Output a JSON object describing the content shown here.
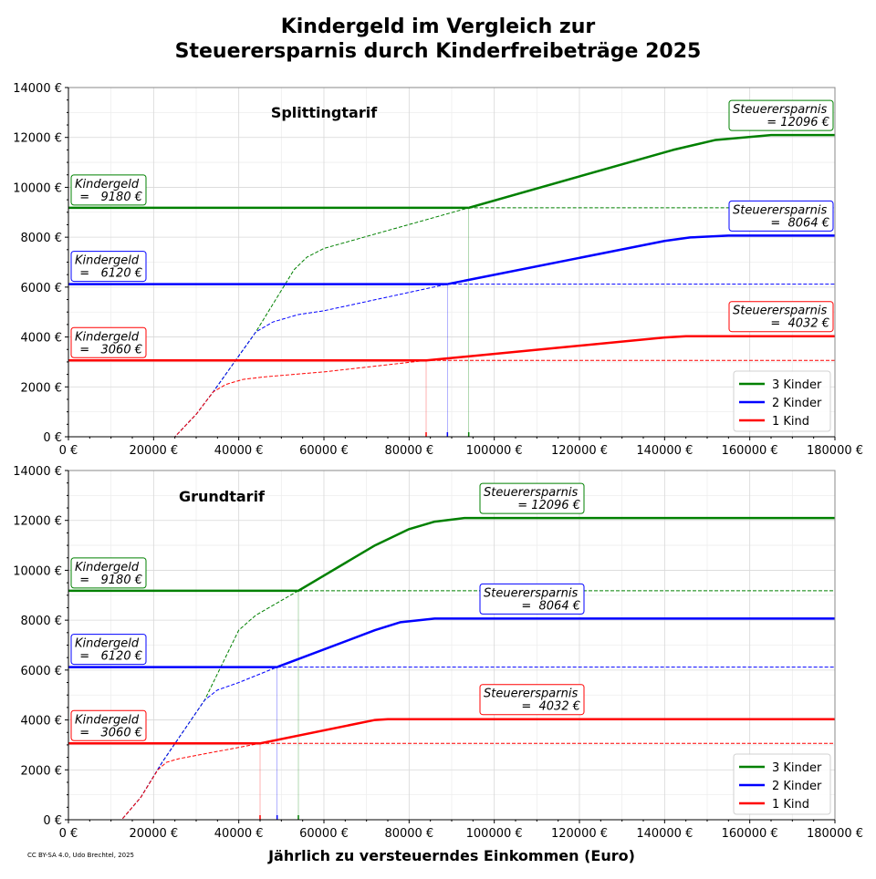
{
  "chart_data": [
    {
      "type": "line",
      "title": "Kindergeld im Vergleich zur",
      "title_line2": "Steuerersparnis durch Kinderfreibeträge 2025",
      "subtitle": "Splittingtarif",
      "xlabel": "",
      "ylabel": "",
      "xlim": [
        0,
        180000
      ],
      "ylim": [
        0,
        14000
      ],
      "grid": true,
      "legend_placement": "lower-right",
      "x_ticks": [
        0,
        20000,
        40000,
        60000,
        80000,
        100000,
        120000,
        140000,
        160000,
        180000
      ],
      "x_tick_labels": [
        "0 €",
        "20000 €",
        "40000 €",
        "60000 €",
        "80000 €",
        "100000 €",
        "120000 €",
        "140000 €",
        "160000 €",
        "180000 €"
      ],
      "y_ticks": [
        0,
        2000,
        4000,
        6000,
        8000,
        10000,
        12000,
        14000
      ],
      "y_tick_labels": [
        "0 €",
        "2000 €",
        "4000 €",
        "6000 €",
        "8000 €",
        "10000 €",
        "12000 €",
        "14000 €"
      ],
      "series": [
        {
          "name": "3 Kinder",
          "color": "#008000",
          "kindergeld": 9180,
          "crossing_x": 94000,
          "kg_label": [
            "Kindergeld",
            "=   9180 €"
          ],
          "st_label": [
            "Steuerersparnis",
            "= 12096 €"
          ],
          "x": [
            0,
            25000,
            30000,
            34000,
            44000,
            53000,
            56000,
            60000,
            94000,
            142000,
            152000,
            165000,
            180000
          ],
          "y": [
            0,
            0,
            900,
            1800,
            4200,
            6700,
            7200,
            7550,
            9180,
            11500,
            11900,
            12096,
            12096
          ]
        },
        {
          "name": "2 Kinder",
          "color": "#0000ff",
          "kindergeld": 6120,
          "crossing_x": 89000,
          "kg_label": [
            "Kindergeld",
            "=   6120 €"
          ],
          "st_label": [
            "Steuerersparnis",
            "=  8064 €"
          ],
          "x": [
            0,
            25000,
            30000,
            34000,
            44000,
            48000,
            54000,
            60000,
            89000,
            140000,
            146000,
            155000,
            180000
          ],
          "y": [
            0,
            0,
            900,
            1800,
            4200,
            4600,
            4900,
            5050,
            6120,
            7850,
            7990,
            8064,
            8064
          ]
        },
        {
          "name": "1 Kind",
          "color": "#ff0000",
          "kindergeld": 3060,
          "crossing_x": 84000,
          "kg_label": [
            "Kindergeld",
            "=   3060 €"
          ],
          "st_label": [
            "Steuerersparnis",
            "=  4032 €"
          ],
          "x": [
            0,
            25000,
            30000,
            34000,
            37000,
            41000,
            46000,
            60000,
            84000,
            140000,
            145000,
            180000
          ],
          "y": [
            0,
            0,
            900,
            1800,
            2100,
            2300,
            2400,
            2600,
            3060,
            3980,
            4032,
            4032
          ]
        }
      ]
    },
    {
      "type": "line",
      "subtitle": "Grundtarif",
      "xlabel": "Jährlich zu versteuerndes Einkommen (Euro)",
      "ylabel": "",
      "xlim": [
        0,
        180000
      ],
      "ylim": [
        0,
        14000
      ],
      "grid": true,
      "legend_placement": "lower-right",
      "x_ticks": [
        0,
        20000,
        40000,
        60000,
        80000,
        100000,
        120000,
        140000,
        160000,
        180000
      ],
      "x_tick_labels": [
        "0 €",
        "20000 €",
        "40000 €",
        "60000 €",
        "80000 €",
        "100000 €",
        "120000 €",
        "140000 €",
        "160000 €",
        "180000 €"
      ],
      "y_ticks": [
        0,
        2000,
        4000,
        6000,
        8000,
        10000,
        12000,
        14000
      ],
      "y_tick_labels": [
        "0 €",
        "2000 €",
        "4000 €",
        "6000 €",
        "8000 €",
        "10000 €",
        "12000 €",
        "14000 €"
      ],
      "series": [
        {
          "name": "3 Kinder",
          "color": "#008000",
          "kindergeld": 9180,
          "crossing_x": 54000,
          "kg_label": [
            "Kindergeld",
            "=   9180 €"
          ],
          "st_label": [
            "Steuerersparnis",
            "= 12096 €"
          ],
          "x": [
            0,
            12500,
            17000,
            22000,
            32000,
            40000,
            44000,
            54000,
            72000,
            80000,
            86000,
            93000,
            180000
          ],
          "y": [
            0,
            0,
            900,
            2300,
            4800,
            7600,
            8200,
            9180,
            11000,
            11650,
            11950,
            12096,
            12096
          ]
        },
        {
          "name": "2 Kinder",
          "color": "#0000ff",
          "kindergeld": 6120,
          "crossing_x": 49000,
          "kg_label": [
            "Kindergeld",
            "=   6120 €"
          ],
          "st_label": [
            "Steuerersparnis",
            "=  8064 €"
          ],
          "x": [
            0,
            12500,
            17000,
            22000,
            32000,
            35000,
            40000,
            49000,
            72000,
            78000,
            86000,
            180000
          ],
          "y": [
            0,
            0,
            900,
            2300,
            4800,
            5200,
            5500,
            6120,
            7600,
            7920,
            8064,
            8064
          ]
        },
        {
          "name": "1 Kind",
          "color": "#ff0000",
          "kindergeld": 3060,
          "crossing_x": 45000,
          "kg_label": [
            "Kindergeld",
            "=   3060 €"
          ],
          "st_label": [
            "Steuerersparnis",
            "=  4032 €"
          ],
          "x": [
            0,
            12500,
            17000,
            21000,
            23000,
            26000,
            45000,
            72000,
            75000,
            180000
          ],
          "y": [
            0,
            0,
            900,
            2000,
            2300,
            2450,
            3060,
            4000,
            4032,
            4032
          ]
        }
      ]
    }
  ],
  "credit": "CC BY-SA 4.0, Udo Brechtel, 2025"
}
